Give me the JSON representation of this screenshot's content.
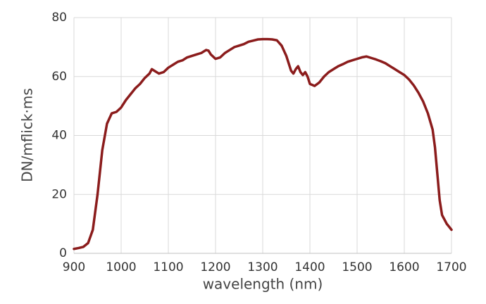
{
  "chart_data": {
    "type": "line",
    "x_label": "wavelength (nm)",
    "y_label": "DN/mflick·ms",
    "x": [
      900,
      910,
      920,
      930,
      940,
      950,
      960,
      970,
      980,
      990,
      1000,
      1010,
      1020,
      1030,
      1040,
      1050,
      1060,
      1065,
      1070,
      1080,
      1090,
      1100,
      1110,
      1120,
      1130,
      1140,
      1150,
      1160,
      1170,
      1180,
      1185,
      1190,
      1200,
      1210,
      1220,
      1230,
      1240,
      1250,
      1260,
      1270,
      1280,
      1290,
      1300,
      1310,
      1320,
      1330,
      1340,
      1350,
      1360,
      1365,
      1370,
      1375,
      1380,
      1385,
      1390,
      1395,
      1400,
      1410,
      1420,
      1430,
      1440,
      1450,
      1460,
      1470,
      1480,
      1490,
      1500,
      1510,
      1520,
      1530,
      1540,
      1550,
      1560,
      1570,
      1580,
      1590,
      1600,
      1610,
      1620,
      1630,
      1640,
      1650,
      1660,
      1665,
      1670,
      1675,
      1680,
      1690,
      1700
    ],
    "series": [
      {
        "color": "#8b1c1c",
        "values": [
          1.5,
          1.8,
          2.2,
          3.5,
          8,
          20,
          35,
          44,
          47.5,
          48,
          49.5,
          52,
          54,
          56,
          57.5,
          59.5,
          61,
          62.5,
          62,
          61,
          61.5,
          63,
          64,
          65,
          65.5,
          66.5,
          67,
          67.5,
          68,
          69,
          68.8,
          67.5,
          66,
          66.5,
          68,
          69,
          70,
          70.5,
          71,
          71.8,
          72.2,
          72.6,
          72.7,
          72.7,
          72.6,
          72.3,
          70.5,
          67,
          62,
          61,
          62.5,
          63.5,
          61.5,
          60.5,
          61.5,
          60,
          57.5,
          56.8,
          58,
          60,
          61.5,
          62.5,
          63.5,
          64.2,
          65,
          65.5,
          66,
          66.5,
          66.8,
          66.3,
          65.8,
          65.2,
          64.5,
          63.5,
          62.5,
          61.5,
          60.5,
          59,
          57,
          54.5,
          51.5,
          47.5,
          42,
          36,
          27,
          18,
          13,
          10,
          8
        ]
      }
    ],
    "xlim": [
      900,
      1700
    ],
    "xticks": [
      900,
      1000,
      1100,
      1200,
      1300,
      1400,
      1500,
      1600,
      1700
    ],
    "ylim": [
      0,
      80
    ],
    "yticks": [
      0,
      20,
      40,
      60,
      80
    ],
    "grid": true
  }
}
